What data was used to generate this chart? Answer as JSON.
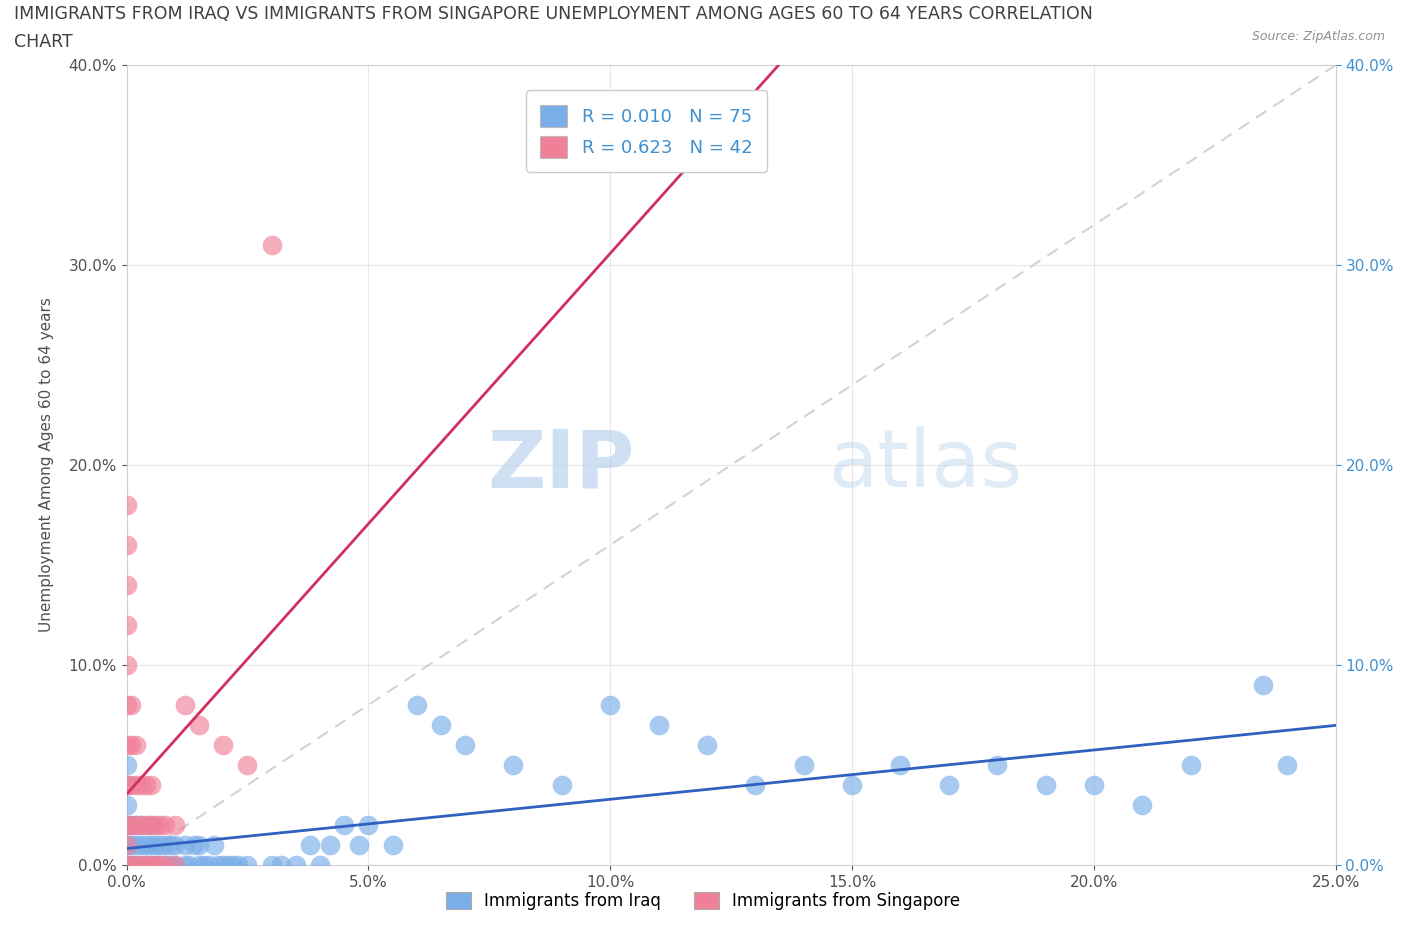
{
  "title_line1": "IMMIGRANTS FROM IRAQ VS IMMIGRANTS FROM SINGAPORE UNEMPLOYMENT AMONG AGES 60 TO 64 YEARS CORRELATION",
  "title_line2": "CHART",
  "source_text": "Source: ZipAtlas.com",
  "ylabel": "Unemployment Among Ages 60 to 64 years",
  "xlim": [
    0.0,
    0.25
  ],
  "ylim": [
    0.0,
    0.4
  ],
  "xticks": [
    0.0,
    0.05,
    0.1,
    0.15,
    0.2,
    0.25
  ],
  "yticks": [
    0.0,
    0.1,
    0.2,
    0.3,
    0.4
  ],
  "iraq_R": 0.01,
  "iraq_N": 75,
  "singapore_R": 0.623,
  "singapore_N": 42,
  "iraq_color": "#7aaee8",
  "singapore_color": "#f08098",
  "iraq_line_color": "#3060c0",
  "singapore_line_color": "#d03060",
  "diag_line_color": "#c8c8c8",
  "legend_label_iraq": "Immigrants from Iraq",
  "legend_label_singapore": "Immigrants from Singapore",
  "title_color": "#404040",
  "axis_color": "#505050",
  "right_axis_color": "#4090d0",
  "watermark_zip": "ZIP",
  "watermark_atlas": "atlas",
  "grid_color": "#e8e8e8",
  "iraq_x": [
    0.0,
    0.0,
    0.0,
    0.0,
    0.0,
    0.0,
    0.001,
    0.001,
    0.001,
    0.002,
    0.002,
    0.002,
    0.003,
    0.003,
    0.003,
    0.004,
    0.004,
    0.005,
    0.005,
    0.005,
    0.006,
    0.006,
    0.007,
    0.007,
    0.008,
    0.008,
    0.009,
    0.009,
    0.01,
    0.01,
    0.012,
    0.012,
    0.013,
    0.014,
    0.015,
    0.015,
    0.016,
    0.017,
    0.018,
    0.019,
    0.02,
    0.021,
    0.022,
    0.023,
    0.025,
    0.03,
    0.032,
    0.035,
    0.038,
    0.04,
    0.042,
    0.045,
    0.048,
    0.05,
    0.055,
    0.06,
    0.065,
    0.07,
    0.08,
    0.09,
    0.1,
    0.11,
    0.12,
    0.13,
    0.14,
    0.15,
    0.16,
    0.17,
    0.18,
    0.19,
    0.2,
    0.21,
    0.22,
    0.235,
    0.24
  ],
  "iraq_y": [
    0.0,
    0.01,
    0.02,
    0.03,
    0.04,
    0.05,
    0.0,
    0.01,
    0.02,
    0.0,
    0.01,
    0.02,
    0.0,
    0.01,
    0.02,
    0.0,
    0.01,
    0.0,
    0.01,
    0.02,
    0.0,
    0.01,
    0.0,
    0.01,
    0.0,
    0.01,
    0.0,
    0.01,
    0.0,
    0.01,
    0.0,
    0.01,
    0.0,
    0.01,
    0.0,
    0.01,
    0.0,
    0.0,
    0.01,
    0.0,
    0.0,
    0.0,
    0.0,
    0.0,
    0.0,
    0.0,
    0.0,
    0.0,
    0.01,
    0.0,
    0.01,
    0.02,
    0.01,
    0.02,
    0.01,
    0.08,
    0.07,
    0.06,
    0.05,
    0.04,
    0.08,
    0.07,
    0.06,
    0.04,
    0.05,
    0.04,
    0.05,
    0.04,
    0.05,
    0.04,
    0.04,
    0.03,
    0.05,
    0.09,
    0.05
  ],
  "singapore_x": [
    0.0,
    0.0,
    0.0,
    0.0,
    0.0,
    0.0,
    0.0,
    0.0,
    0.0,
    0.0,
    0.0,
    0.001,
    0.001,
    0.001,
    0.001,
    0.001,
    0.002,
    0.002,
    0.002,
    0.002,
    0.003,
    0.003,
    0.003,
    0.004,
    0.004,
    0.004,
    0.005,
    0.005,
    0.005,
    0.006,
    0.006,
    0.007,
    0.007,
    0.008,
    0.008,
    0.01,
    0.01,
    0.012,
    0.015,
    0.02,
    0.025,
    0.03
  ],
  "singapore_y": [
    0.0,
    0.01,
    0.02,
    0.04,
    0.06,
    0.08,
    0.1,
    0.12,
    0.14,
    0.16,
    0.18,
    0.0,
    0.02,
    0.04,
    0.06,
    0.08,
    0.0,
    0.02,
    0.04,
    0.06,
    0.0,
    0.02,
    0.04,
    0.0,
    0.02,
    0.04,
    0.0,
    0.02,
    0.04,
    0.0,
    0.02,
    0.0,
    0.02,
    0.0,
    0.02,
    0.0,
    0.02,
    0.08,
    0.07,
    0.06,
    0.05,
    0.31
  ]
}
